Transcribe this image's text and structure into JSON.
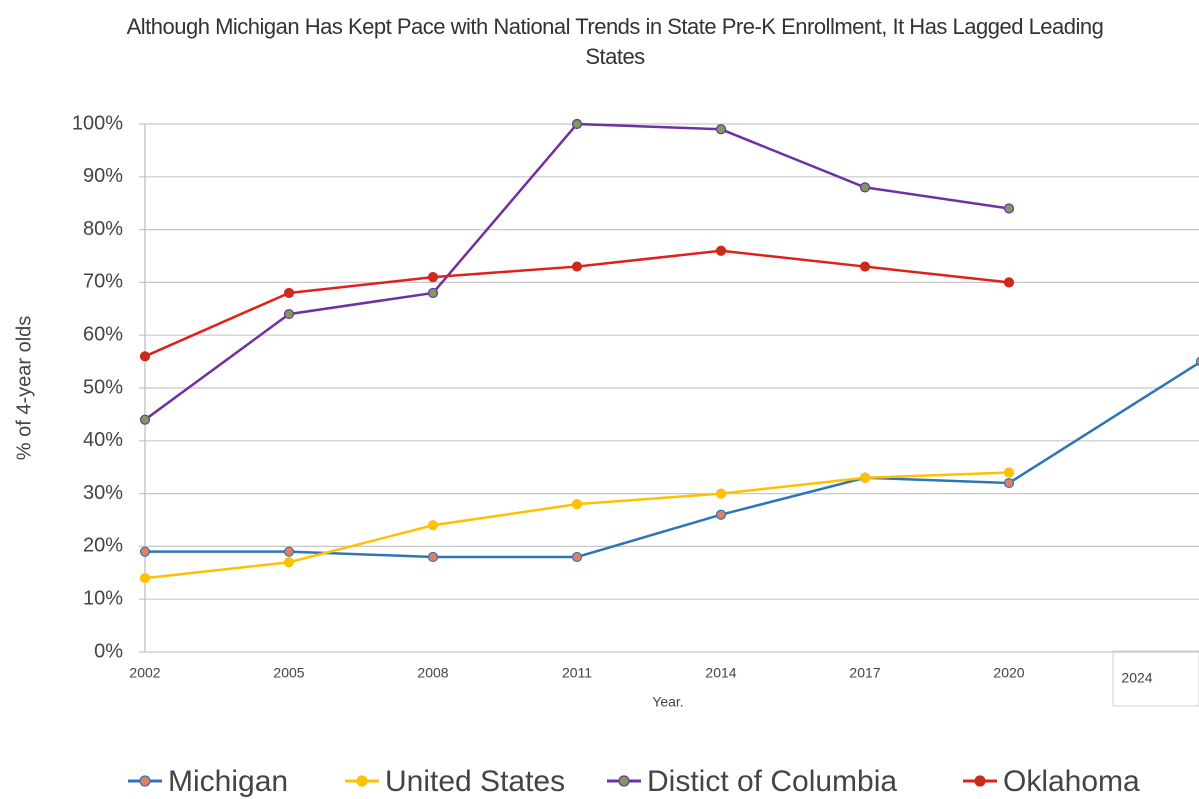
{
  "chart_data": {
    "type": "line",
    "title": "Although Michigan Has Kept Pace with National Trends in State Pre-K Enrollment, It Has Lagged Leading States",
    "x_label": "Year.",
    "y_label": "% of 4-year olds",
    "x": [
      2002,
      2005,
      2008,
      2011,
      2014,
      2017,
      2020,
      2024
    ],
    "xlim": [
      2002,
      2024
    ],
    "xticks": [
      2002,
      2005,
      2008,
      2011,
      2014,
      2017,
      2020,
      2024
    ],
    "ylim": [
      0,
      100
    ],
    "yticks": [
      {
        "value": 0,
        "label": "0%"
      },
      {
        "value": 10,
        "label": "10%"
      },
      {
        "value": 20,
        "label": "20%"
      },
      {
        "value": 30,
        "label": "30%"
      },
      {
        "value": 40,
        "label": "40%"
      },
      {
        "value": 50,
        "label": "50%"
      },
      {
        "value": 60,
        "label": "60%"
      },
      {
        "value": 70,
        "label": "70%"
      },
      {
        "value": 80,
        "label": "80%"
      },
      {
        "value": 90,
        "label": "90%"
      },
      {
        "value": 100,
        "label": "100%"
      }
    ],
    "grid": true,
    "legend": "bottom",
    "series": [
      {
        "name": "Michigan",
        "color": "#2e75b6",
        "marker_color": "#e0805f",
        "values": [
          19,
          19,
          18,
          18,
          26,
          33,
          32,
          55
        ]
      },
      {
        "name": "United States",
        "color": "#ffc000",
        "marker_color": "#ffc000",
        "values": [
          14,
          17,
          24,
          28,
          30,
          33,
          34,
          null
        ]
      },
      {
        "name": "Distict of Columbia",
        "color": "#7030a0",
        "marker_color": "#7f9a5c",
        "values": [
          44,
          64,
          68,
          100,
          99,
          88,
          84,
          null
        ]
      },
      {
        "name": "Oklahoma",
        "color": "#e0201b",
        "marker_color": "#c0301b",
        "values": [
          56,
          68,
          71,
          73,
          76,
          73,
          70,
          null
        ]
      }
    ]
  }
}
